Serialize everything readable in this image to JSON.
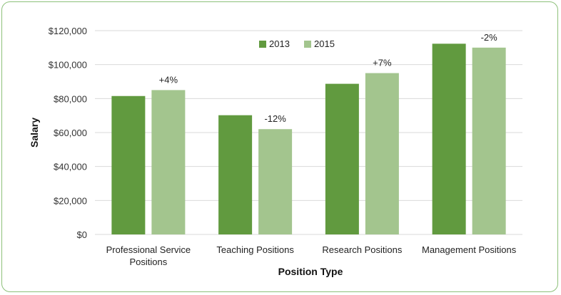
{
  "chart_data": {
    "type": "bar",
    "title": "",
    "xlabel": "Position Type",
    "ylabel": "Salary",
    "ylim": [
      0,
      120000
    ],
    "yticks": [
      0,
      20000,
      40000,
      60000,
      80000,
      100000,
      120000
    ],
    "ytick_labels": [
      "$0",
      "$20,000",
      "$40,000",
      "$60,000",
      "$80,000",
      "$100,000",
      "$120,000"
    ],
    "categories": [
      [
        "Professional Service",
        "Positions"
      ],
      [
        "Teaching Positions"
      ],
      [
        "Research Positions"
      ],
      [
        "Management Positions"
      ]
    ],
    "series": [
      {
        "name": "2013",
        "color": "#619a3f",
        "values": [
          81500,
          70200,
          88700,
          112300
        ]
      },
      {
        "name": "2015",
        "color": "#a3c58e",
        "values": [
          85000,
          62000,
          95000,
          110000
        ]
      }
    ],
    "annotations": [
      "+4%",
      "-12%",
      "+7%",
      "-2%"
    ],
    "legend_position": "top-center",
    "grid": true
  }
}
